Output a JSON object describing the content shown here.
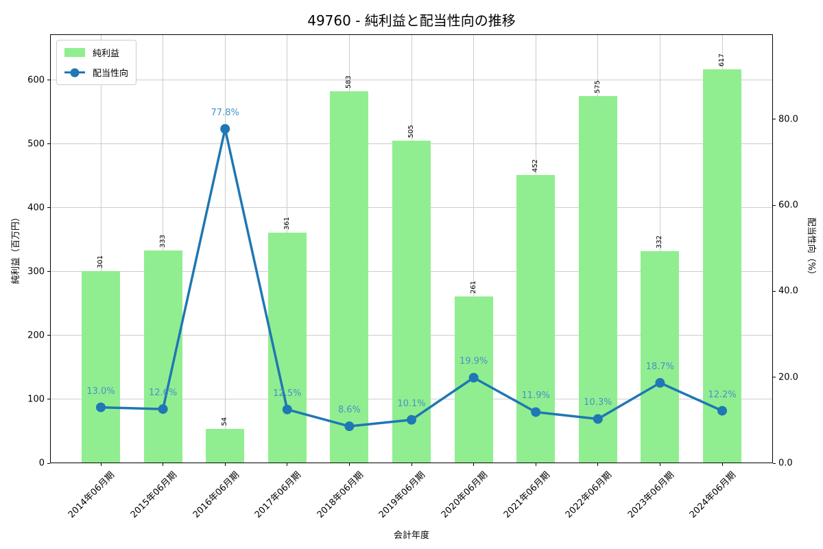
{
  "chart_data": {
    "type": "combo-bar-line",
    "title": "49760 - 純利益と配当性向の推移",
    "xlabel": "会計年度",
    "ylabel_left": "純利益（百万円）",
    "ylabel_right": "配当性向（%）",
    "categories": [
      "2014年06月期",
      "2015年06月期",
      "2016年06月期",
      "2017年06月期",
      "2018年06月期",
      "2019年06月期",
      "2020年06月期",
      "2021年06月期",
      "2022年06月期",
      "2023年06月期",
      "2024年06月期"
    ],
    "series": [
      {
        "name": "純利益",
        "type": "bar",
        "axis": "left",
        "color": "#90ee90",
        "values": [
          301,
          333,
          54,
          361,
          583,
          505,
          261,
          452,
          575,
          332,
          617
        ],
        "labels": [
          "301",
          "333",
          "54",
          "361",
          "583",
          "505",
          "261",
          "452",
          "575",
          "332",
          "617"
        ]
      },
      {
        "name": "配当性向",
        "type": "line",
        "axis": "right",
        "color": "#1f77b4",
        "label_color": "#4494c9",
        "marker": "circle",
        "values": [
          13.0,
          12.6,
          77.8,
          12.5,
          8.6,
          10.1,
          19.9,
          11.9,
          10.3,
          18.7,
          12.2
        ],
        "labels": [
          "13.0%",
          "12.6%",
          "77.8%",
          "12.5%",
          "8.6%",
          "10.1%",
          "19.9%",
          "11.9%",
          "10.3%",
          "18.7%",
          "12.2%"
        ]
      }
    ],
    "left_axis": {
      "ticks": [
        0,
        100,
        200,
        300,
        400,
        500,
        600
      ],
      "range": [
        0,
        672
      ]
    },
    "right_axis": {
      "ticks": [
        "0.0",
        "20.0",
        "40.0",
        "60.0",
        "80.0"
      ],
      "tick_values": [
        0,
        20,
        40,
        60,
        80
      ],
      "range": [
        0,
        99.8
      ]
    },
    "legend": {
      "entries": [
        "純利益",
        "配当性向"
      ],
      "position": "upper-left"
    },
    "grid": true,
    "grid_color": "#cccccc",
    "background": "#ffffff"
  }
}
